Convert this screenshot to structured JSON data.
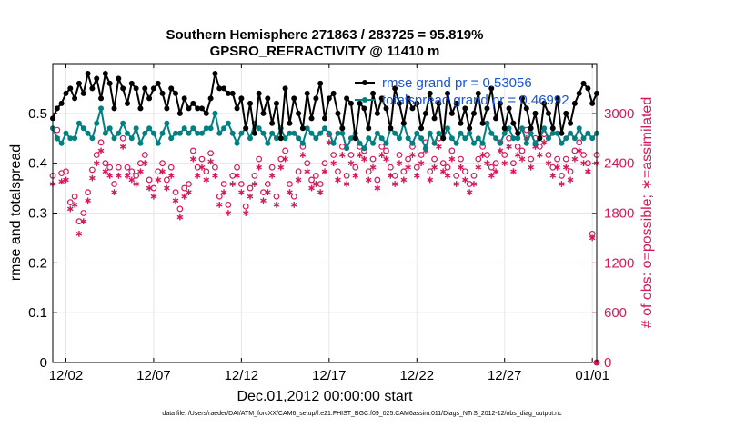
{
  "chart_data": {
    "type": "line",
    "title": "Southern Hemisphere 271863 / 283725 = 95.819%",
    "subtitle": "GPSRO_REFRACTIVITY @ 11410 m",
    "xlabel": "Dec.01,2012 00:00:00 start",
    "ylabel": "rmse and totalspread",
    "y2label": "# of obs: o=possible; ∗=assimilated",
    "footnote": "data file: /Users/raeder/DAI/ATM_forcXX/CAM6_setup/f.e21.FHIST_BGC.f09_025.CAM6assim.011/Diags_NTrS_2012-12/obs_diag_output.nc",
    "x_ticks": [
      {
        "label": "12/02",
        "value": 1
      },
      {
        "label": "12/07",
        "value": 6
      },
      {
        "label": "12/12",
        "value": 11
      },
      {
        "label": "12/17",
        "value": 16
      },
      {
        "label": "12/22",
        "value": 21
      },
      {
        "label": "12/27",
        "value": 26
      },
      {
        "label": "01/01",
        "value": 31
      }
    ],
    "xlim": [
      0.25,
      31.25
    ],
    "ylim": [
      0,
      0.6
    ],
    "y_ticks": [
      "0",
      "0.1",
      "0.2",
      "0.3",
      "0.4",
      "0.5"
    ],
    "y2lim": [
      0,
      3600
    ],
    "y2_ticks": [
      "0",
      "600",
      "1200",
      "1800",
      "2400",
      "3000"
    ],
    "grid": true,
    "legend_position": "top-right",
    "series": [
      {
        "name": "rmse grand pr = 0.53056",
        "color": "#000000",
        "marker": "filled-circle",
        "axis": "left",
        "x": [
          0.25,
          0.5,
          0.75,
          1,
          1.25,
          1.5,
          1.75,
          2,
          2.25,
          2.5,
          2.75,
          3,
          3.25,
          3.5,
          3.75,
          4,
          4.25,
          4.5,
          4.75,
          5,
          5.25,
          5.5,
          5.75,
          6,
          6.25,
          6.5,
          6.75,
          7,
          7.25,
          7.5,
          7.75,
          8,
          8.25,
          8.5,
          8.75,
          9,
          9.25,
          9.5,
          9.75,
          10,
          10.25,
          10.5,
          10.75,
          11,
          11.25,
          11.5,
          11.75,
          12,
          12.25,
          12.5,
          12.75,
          13,
          13.25,
          13.5,
          13.75,
          14,
          14.25,
          14.5,
          14.75,
          15,
          15.25,
          15.5,
          15.75,
          16,
          16.25,
          16.5,
          16.75,
          17,
          17.25,
          17.5,
          17.75,
          18,
          18.25,
          18.5,
          18.75,
          19,
          19.25,
          19.5,
          19.75,
          20,
          20.25,
          20.5,
          20.75,
          21,
          21.25,
          21.5,
          21.75,
          22,
          22.25,
          22.5,
          22.75,
          23,
          23.25,
          23.5,
          23.75,
          24,
          24.25,
          24.5,
          24.75,
          25,
          25.25,
          25.5,
          25.75,
          26,
          26.25,
          26.5,
          26.75,
          27,
          27.25,
          27.5,
          27.75,
          28,
          28.25,
          28.5,
          28.75,
          29,
          29.25,
          29.5,
          29.75,
          30,
          30.25,
          30.5,
          30.75,
          31,
          31.25
        ],
        "values": [
          0.49,
          0.51,
          0.52,
          0.54,
          0.55,
          0.53,
          0.56,
          0.54,
          0.58,
          0.55,
          0.57,
          0.53,
          0.58,
          0.56,
          0.51,
          0.57,
          0.55,
          0.52,
          0.56,
          0.55,
          0.51,
          0.55,
          0.53,
          0.55,
          0.56,
          0.54,
          0.51,
          0.55,
          0.54,
          0.5,
          0.53,
          0.51,
          0.52,
          0.51,
          0.51,
          0.5,
          0.53,
          0.58,
          0.55,
          0.55,
          0.54,
          0.54,
          0.51,
          0.53,
          0.47,
          0.52,
          0.46,
          0.54,
          0.5,
          0.53,
          0.48,
          0.52,
          0.45,
          0.55,
          0.48,
          0.53,
          0.5,
          0.47,
          0.54,
          0.49,
          0.53,
          0.56,
          0.49,
          0.53,
          0.54,
          0.5,
          0.47,
          0.53,
          0.52,
          0.45,
          0.52,
          0.51,
          0.47,
          0.54,
          0.5,
          0.53,
          0.51,
          0.47,
          0.55,
          0.52,
          0.48,
          0.53,
          0.51,
          0.52,
          0.47,
          0.5,
          0.54,
          0.49,
          0.52,
          0.45,
          0.54,
          0.5,
          0.52,
          0.48,
          0.51,
          0.47,
          0.5,
          0.54,
          0.48,
          0.51,
          0.55,
          0.49,
          0.52,
          0.47,
          0.51,
          0.48,
          0.46,
          0.53,
          0.51,
          0.47,
          0.5,
          0.45,
          0.52,
          0.5,
          0.47,
          0.53,
          0.46,
          0.5,
          0.48,
          0.52,
          0.54,
          0.56,
          0.55,
          0.52,
          0.54
        ],
        "annotation": "rmse line; markers at every 6h bin"
      },
      {
        "name": "totalspread grand pr = 0.46992",
        "color": "#008080",
        "marker": "filled-circle",
        "axis": "left",
        "x": [
          0.25,
          0.5,
          0.75,
          1,
          1.25,
          1.5,
          1.75,
          2,
          2.25,
          2.5,
          2.75,
          3,
          3.25,
          3.5,
          3.75,
          4,
          4.25,
          4.5,
          4.75,
          5,
          5.25,
          5.5,
          5.75,
          6,
          6.25,
          6.5,
          6.75,
          7,
          7.25,
          7.5,
          7.75,
          8,
          8.25,
          8.5,
          8.75,
          9,
          9.25,
          9.5,
          9.75,
          10,
          10.25,
          10.5,
          10.75,
          11,
          11.25,
          11.5,
          11.75,
          12,
          12.25,
          12.5,
          12.75,
          13,
          13.25,
          13.5,
          13.75,
          14,
          14.25,
          14.5,
          14.75,
          15,
          15.25,
          15.5,
          15.75,
          16,
          16.25,
          16.5,
          16.75,
          17,
          17.25,
          17.5,
          17.75,
          18,
          18.25,
          18.5,
          18.75,
          19,
          19.25,
          19.5,
          19.75,
          20,
          20.25,
          20.5,
          20.75,
          21,
          21.25,
          21.5,
          21.75,
          22,
          22.25,
          22.5,
          22.75,
          23,
          23.25,
          23.5,
          23.75,
          24,
          24.25,
          24.5,
          24.75,
          25,
          25.25,
          25.5,
          25.75,
          26,
          26.25,
          26.5,
          26.75,
          27,
          27.25,
          27.5,
          27.75,
          28,
          28.25,
          28.5,
          28.75,
          29,
          29.25,
          29.5,
          29.75,
          30,
          30.25,
          30.5,
          30.75,
          31,
          31.25
        ],
        "values": [
          0.47,
          0.45,
          0.44,
          0.46,
          0.45,
          0.45,
          0.48,
          0.47,
          0.46,
          0.45,
          0.48,
          0.51,
          0.46,
          0.47,
          0.45,
          0.46,
          0.48,
          0.46,
          0.45,
          0.47,
          0.44,
          0.46,
          0.47,
          0.46,
          0.44,
          0.46,
          0.48,
          0.45,
          0.46,
          0.46,
          0.47,
          0.46,
          0.47,
          0.46,
          0.46,
          0.47,
          0.47,
          0.5,
          0.46,
          0.47,
          0.48,
          0.46,
          0.44,
          0.46,
          0.47,
          0.45,
          0.48,
          0.47,
          0.46,
          0.44,
          0.46,
          0.45,
          0.47,
          0.45,
          0.46,
          0.46,
          0.45,
          0.44,
          0.47,
          0.46,
          0.45,
          0.46,
          0.47,
          0.46,
          0.44,
          0.46,
          0.46,
          0.43,
          0.45,
          0.46,
          0.44,
          0.43,
          0.45,
          0.44,
          0.46,
          0.45,
          0.44,
          0.47,
          0.46,
          0.45,
          0.48,
          0.45,
          0.44,
          0.46,
          0.45,
          0.43,
          0.46,
          0.44,
          0.46,
          0.45,
          0.47,
          0.45,
          0.44,
          0.46,
          0.45,
          0.46,
          0.44,
          0.45,
          0.44,
          0.48,
          0.46,
          0.45,
          0.44,
          0.46,
          0.47,
          0.45,
          0.45,
          0.47,
          0.44,
          0.46,
          0.44,
          0.45,
          0.47,
          0.45,
          0.46,
          0.46,
          0.44,
          0.45,
          0.46,
          0.45,
          0.47,
          0.45,
          0.46,
          0.45,
          0.46
        ]
      },
      {
        "name": "",
        "color": "#d6185b",
        "marker": "open-circle",
        "axis": "right",
        "x": [
          0.25,
          0.5,
          0.75,
          1,
          1.25,
          1.5,
          1.75,
          2,
          2.25,
          2.5,
          2.75,
          3,
          3.25,
          3.5,
          3.75,
          4,
          4.25,
          4.5,
          4.75,
          5,
          5.25,
          5.5,
          5.75,
          6,
          6.25,
          6.5,
          6.75,
          7,
          7.25,
          7.5,
          7.75,
          8,
          8.25,
          8.5,
          8.75,
          9,
          9.25,
          9.5,
          9.75,
          10,
          10.25,
          10.5,
          10.75,
          11,
          11.25,
          11.5,
          11.75,
          12,
          12.25,
          12.5,
          12.75,
          13,
          13.25,
          13.5,
          13.75,
          14,
          14.25,
          14.5,
          14.75,
          15,
          15.25,
          15.5,
          15.75,
          16,
          16.25,
          16.5,
          16.75,
          17,
          17.25,
          17.5,
          17.75,
          18,
          18.25,
          18.5,
          18.75,
          19,
          19.25,
          19.5,
          19.75,
          20,
          20.25,
          20.5,
          20.75,
          21,
          21.25,
          21.5,
          21.75,
          22,
          22.25,
          22.5,
          22.75,
          23,
          23.25,
          23.5,
          23.75,
          24,
          24.25,
          24.5,
          24.75,
          25,
          25.25,
          25.5,
          25.75,
          26,
          26.25,
          26.5,
          26.75,
          27,
          27.25,
          27.5,
          27.75,
          28,
          28.25,
          28.5,
          28.75,
          29,
          29.25,
          29.5,
          29.75,
          30,
          30.25,
          30.5,
          30.75,
          31,
          31.25
        ],
        "values": [
          2250,
          2800,
          2280,
          2300,
          1930,
          2000,
          1700,
          1800,
          2050,
          2320,
          2500,
          2650,
          2400,
          2350,
          2150,
          2350,
          2700,
          2350,
          2300,
          2250,
          2400,
          2500,
          2200,
          2100,
          2300,
          2400,
          2200,
          2350,
          2050,
          1850,
          2100,
          2150,
          2550,
          2350,
          2450,
          2300,
          2520,
          2350,
          2000,
          2150,
          1900,
          2250,
          2350,
          2150,
          1880,
          2100,
          2250,
          2450,
          2050,
          2150,
          2350,
          2000,
          2450,
          2550,
          2150,
          2000,
          2300,
          2600,
          2400,
          2200,
          2250,
          2150,
          2400,
          2750,
          2500,
          2300,
          2600,
          2250,
          2500,
          2350,
          2600,
          2550,
          2300,
          2450,
          2200,
          2600,
          2550,
          2350,
          2250,
          2500,
          2300,
          2450,
          2600,
          2350,
          2500,
          2650,
          2300,
          2450,
          2700,
          2400,
          2350,
          2550,
          2250,
          2450,
          2300,
          2150,
          2250,
          2450,
          2600,
          2500,
          2350,
          2400,
          2650,
          2500,
          2700,
          2400,
          2600,
          2550,
          2800,
          2450,
          2700,
          2600,
          2750,
          2500,
          2350,
          2450,
          2250,
          2450,
          2300,
          2550,
          2650,
          2500,
          2400,
          1550,
          2500
        ],
        "annotation": "possible obs count (right axis)"
      },
      {
        "name": "",
        "color": "#d6185b",
        "marker": "asterisk",
        "axis": "right",
        "x": [
          0.25,
          0.5,
          0.75,
          1,
          1.25,
          1.5,
          1.75,
          2,
          2.25,
          2.5,
          2.75,
          3,
          3.25,
          3.5,
          3.75,
          4,
          4.25,
          4.5,
          4.75,
          5,
          5.25,
          5.5,
          5.75,
          6,
          6.25,
          6.5,
          6.75,
          7,
          7.25,
          7.5,
          7.75,
          8,
          8.25,
          8.5,
          8.75,
          9,
          9.25,
          9.5,
          9.75,
          10,
          10.25,
          10.5,
          10.75,
          11,
          11.25,
          11.5,
          11.75,
          12,
          12.25,
          12.5,
          12.75,
          13,
          13.25,
          13.5,
          13.75,
          14,
          14.25,
          14.5,
          14.75,
          15,
          15.25,
          15.5,
          15.75,
          16,
          16.25,
          16.5,
          16.75,
          17,
          17.25,
          17.5,
          17.75,
          18,
          18.25,
          18.5,
          18.75,
          19,
          19.25,
          19.5,
          19.75,
          20,
          20.25,
          20.5,
          20.75,
          21,
          21.25,
          21.5,
          21.75,
          22,
          22.25,
          22.5,
          22.75,
          23,
          23.25,
          23.5,
          23.75,
          24,
          24.25,
          24.5,
          24.75,
          25,
          25.25,
          25.5,
          25.75,
          26,
          26.25,
          26.5,
          26.75,
          27,
          27.25,
          27.5,
          27.75,
          28,
          28.25,
          28.5,
          28.75,
          29,
          29.25,
          29.5,
          29.75,
          30,
          30.25,
          30.5,
          30.75,
          31,
          31.25
        ],
        "values": [
          2150,
          2700,
          2180,
          2200,
          1850,
          1900,
          1550,
          1700,
          1950,
          2220,
          2400,
          2550,
          2300,
          2250,
          2050,
          2250,
          2600,
          2250,
          2200,
          2150,
          2300,
          2400,
          2100,
          2000,
          2200,
          2300,
          2100,
          2250,
          1950,
          1750,
          2000,
          2050,
          2450,
          2250,
          2350,
          2200,
          2420,
          2250,
          1900,
          2050,
          1800,
          2150,
          2250,
          2050,
          1800,
          2000,
          2150,
          2350,
          1950,
          2050,
          2250,
          1900,
          2350,
          2450,
          2050,
          1900,
          2200,
          2500,
          2300,
          2100,
          2150,
          2050,
          2300,
          2650,
          2400,
          2200,
          2500,
          2150,
          2400,
          2250,
          2500,
          2450,
          2200,
          2350,
          2100,
          2500,
          2450,
          2250,
          2150,
          2400,
          2200,
          2350,
          2500,
          2250,
          2400,
          2550,
          2200,
          2350,
          2600,
          2300,
          2250,
          2450,
          2150,
          2350,
          2200,
          2050,
          2150,
          2350,
          2500,
          2400,
          2250,
          2300,
          2550,
          2400,
          2600,
          2300,
          2500,
          2450,
          2700,
          2350,
          2600,
          2500,
          2650,
          2400,
          2250,
          2350,
          2150,
          2350,
          2200,
          2450,
          2550,
          2400,
          2300,
          1500,
          2400
        ],
        "annotation": "assimilated obs count (right axis)"
      }
    ],
    "colors": {
      "rmse": "#000000",
      "spread": "#008080",
      "obs": "#d6185b",
      "legend_text": "#1a55d6",
      "grid": "#e6e6e6"
    }
  }
}
